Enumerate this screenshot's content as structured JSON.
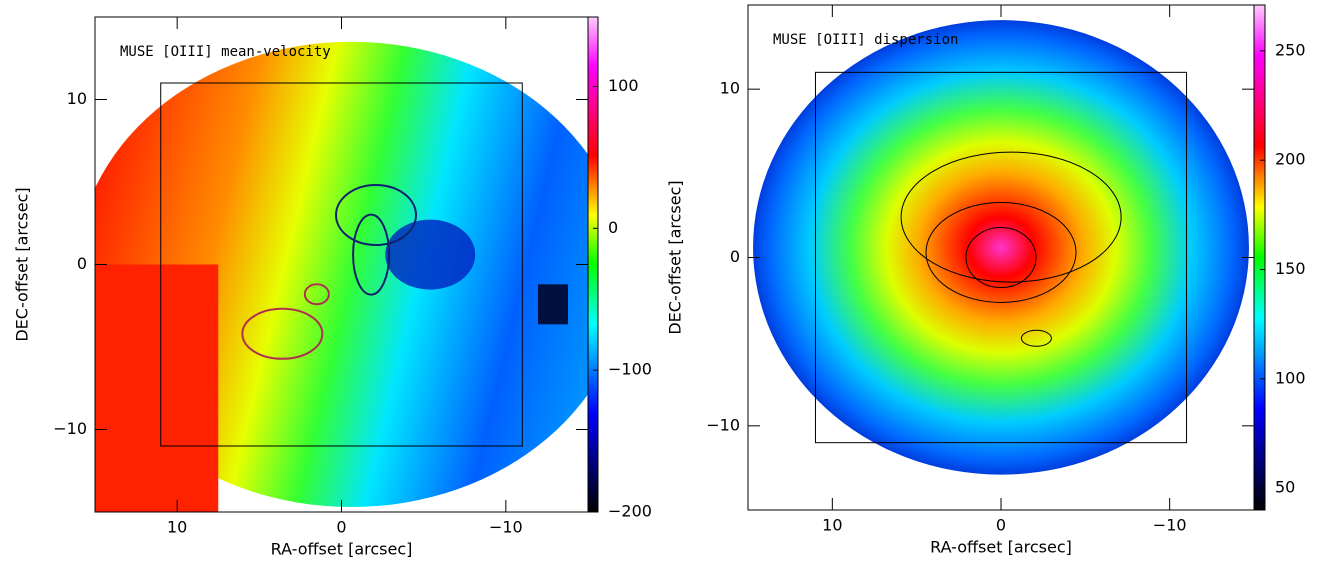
{
  "chart_data": [
    {
      "type": "heatmap",
      "title": "MUSE [OIII] mean-velocity",
      "x_label": "RA-offset [arcsec]",
      "y_label": "DEC-offset [arcsec]",
      "xlim": [
        15,
        -15
      ],
      "ylim": [
        -15,
        15
      ],
      "xticks": [
        10,
        0,
        {
          "value": -10,
          "label": "−10"
        }
      ],
      "yticks": [
        {
          "value": -10,
          "label": "−10"
        },
        0,
        10
      ],
      "colorbar_lim": [
        -200,
        149
      ],
      "colorbar_ticks": [
        {
          "value": -200,
          "label": "−200"
        },
        {
          "value": -100,
          "label": "−100"
        },
        0,
        100
      ]
    },
    {
      "type": "heatmap",
      "title": "MUSE [OIII] dispersion",
      "x_label": "RA-offset [arcsec]",
      "y_label": "DEC-offset [arcsec]",
      "xlim": [
        15,
        -15
      ],
      "ylim": [
        -15,
        15
      ],
      "xticks": [
        10,
        0,
        {
          "value": -10,
          "label": "−10"
        }
      ],
      "yticks": [
        {
          "value": -10,
          "label": "−10"
        },
        0,
        10
      ],
      "colorbar_lim": [
        40,
        271
      ],
      "colorbar_ticks": [
        50,
        100,
        150,
        200,
        250
      ]
    }
  ]
}
